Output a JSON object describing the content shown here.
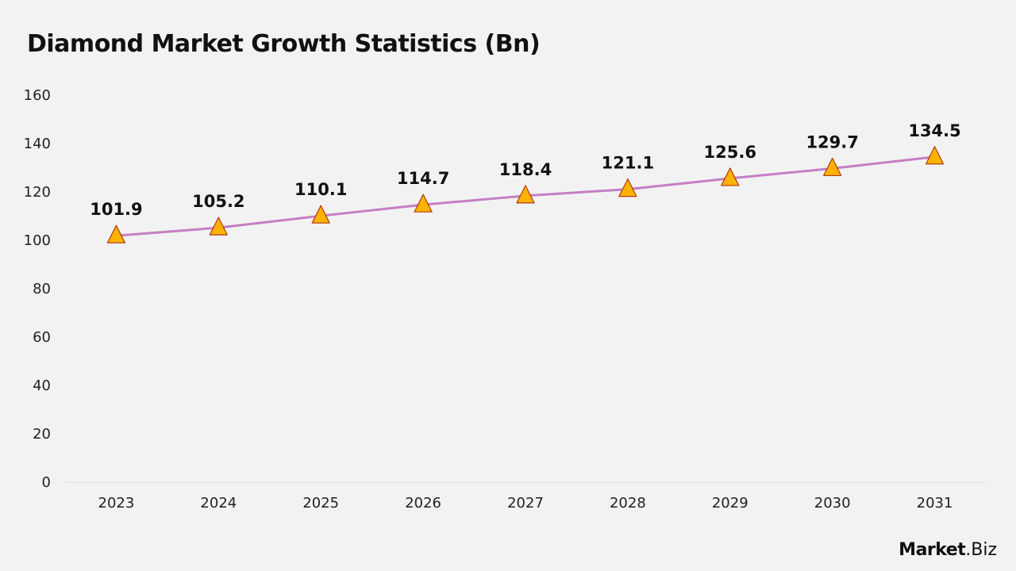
{
  "title": "Diamond Market Growth Statistics (Bn)",
  "brand": {
    "strong": "Market",
    "light": ".Biz"
  },
  "colors": {
    "line": "#c47fc4",
    "marker_fill": "#ffb300",
    "marker_stroke": "#b03a10",
    "axis": "#d9d9d9"
  },
  "chart_data": {
    "type": "line",
    "title": "Diamond Market Growth Statistics (Bn)",
    "xlabel": "",
    "ylabel": "",
    "categories": [
      "2023",
      "2024",
      "2025",
      "2026",
      "2027",
      "2028",
      "2029",
      "2030",
      "2031"
    ],
    "series": [
      {
        "values": [
          101.9,
          105.2,
          110.1,
          114.7,
          118.4,
          121.1,
          125.6,
          129.7,
          134.5
        ],
        "marker": "triangle"
      }
    ],
    "data_labels": [
      "101.9",
      "105.2",
      "110.1",
      "114.7",
      "118.4",
      "121.1",
      "125.6",
      "129.7",
      "134.5"
    ],
    "ylim": [
      0,
      160
    ],
    "yticks": [
      0,
      20,
      40,
      60,
      80,
      100,
      120,
      140,
      160
    ],
    "grid": false,
    "legend": "none"
  }
}
